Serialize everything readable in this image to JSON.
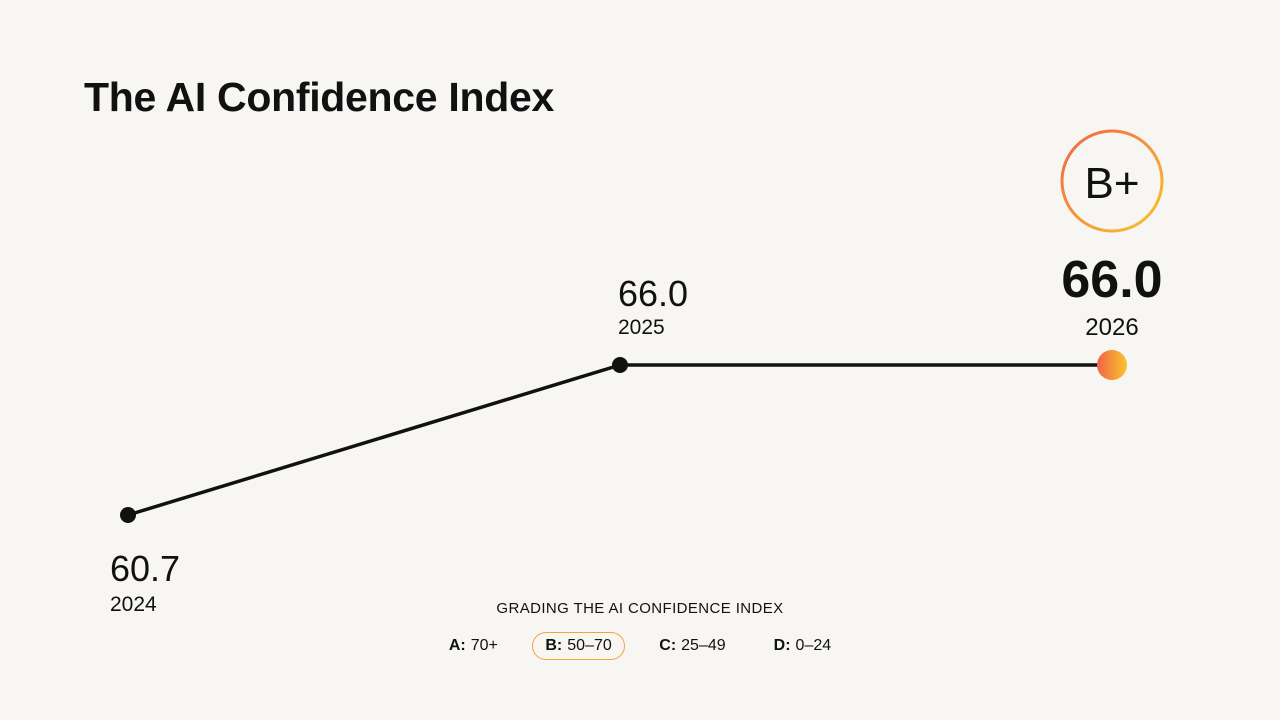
{
  "title": "The AI Confidence Index",
  "colors": {
    "background": "#f7f6f3",
    "line": "#111111",
    "accent_start": "#f2634a",
    "accent_end": "#f8c52c"
  },
  "chart_data": {
    "type": "line",
    "x": [
      "2024",
      "2025",
      "2026"
    ],
    "series": [
      {
        "values": [
          60.7,
          66.0,
          66.0
        ]
      }
    ],
    "value_labels": [
      "60.7",
      "66.0",
      "66.0"
    ],
    "highlight_index": 2,
    "grade": "B+",
    "grid": false
  },
  "legend": {
    "title": "GRADING THE AI CONFIDENCE INDEX",
    "grades": [
      {
        "letter": "A:",
        "range": "70+",
        "active": false
      },
      {
        "letter": "B:",
        "range": "50–70",
        "active": true
      },
      {
        "letter": "C:",
        "range": "25–49",
        "active": false
      },
      {
        "letter": "D:",
        "range": "0–24",
        "active": false
      }
    ]
  }
}
